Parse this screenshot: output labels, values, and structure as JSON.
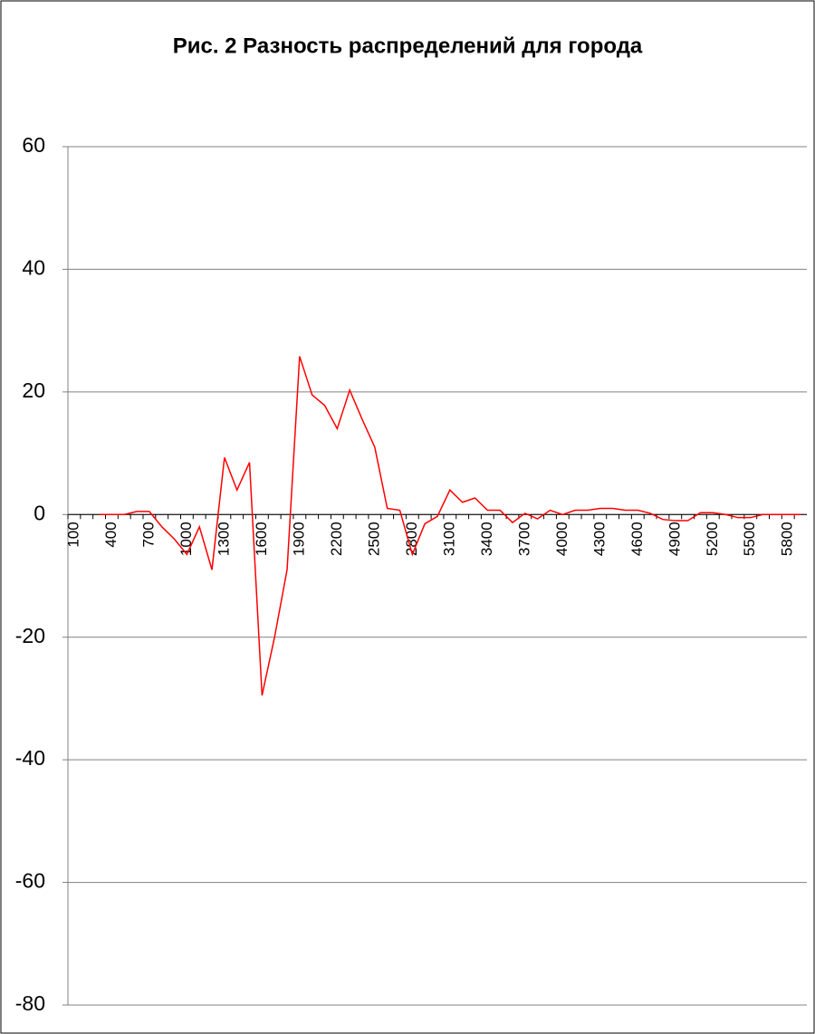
{
  "chart_data": {
    "type": "line",
    "title": "Рис. 2 Разность распределений для города",
    "categories": [
      "100",
      null,
      null,
      "400",
      null,
      null,
      "700",
      null,
      null,
      "1000",
      null,
      null,
      "1300",
      null,
      null,
      "1600",
      null,
      null,
      "1900",
      null,
      null,
      "2200",
      null,
      null,
      "2500",
      null,
      null,
      "2800",
      null,
      null,
      "3100",
      null,
      null,
      "3400",
      null,
      null,
      "3700",
      null,
      null,
      "4000",
      null,
      null,
      "4300",
      null,
      null,
      "4600",
      null,
      null,
      "4900",
      null,
      null,
      "5200",
      null,
      null,
      "5500",
      null,
      null,
      "5800",
      null
    ],
    "series": [
      {
        "color": "#ff0000",
        "values": [
          null,
          null,
          0,
          0,
          0,
          0.5,
          0.5,
          -2,
          -4,
          -6.5,
          -2,
          -9,
          9.3,
          4,
          8.5,
          -29.5,
          -20,
          -9,
          25.8,
          19.5,
          17.8,
          14,
          20.3,
          15.5,
          11,
          1,
          0.7,
          -6.5,
          -1.5,
          -0.3,
          4,
          2,
          2.7,
          0.7,
          0.7,
          -1.3,
          0.2,
          -0.7,
          0.7,
          0,
          0.7,
          0.7,
          1,
          1,
          0.7,
          0.7,
          0.2,
          -0.8,
          -1,
          -1,
          0.3,
          0.3,
          0,
          -0.5,
          -0.5,
          0,
          0,
          0,
          0
        ]
      }
    ],
    "ylim": [
      -80,
      60
    ],
    "yticks": [
      -80,
      -60,
      -40,
      -20,
      0,
      20,
      40,
      60
    ],
    "grid": true
  }
}
